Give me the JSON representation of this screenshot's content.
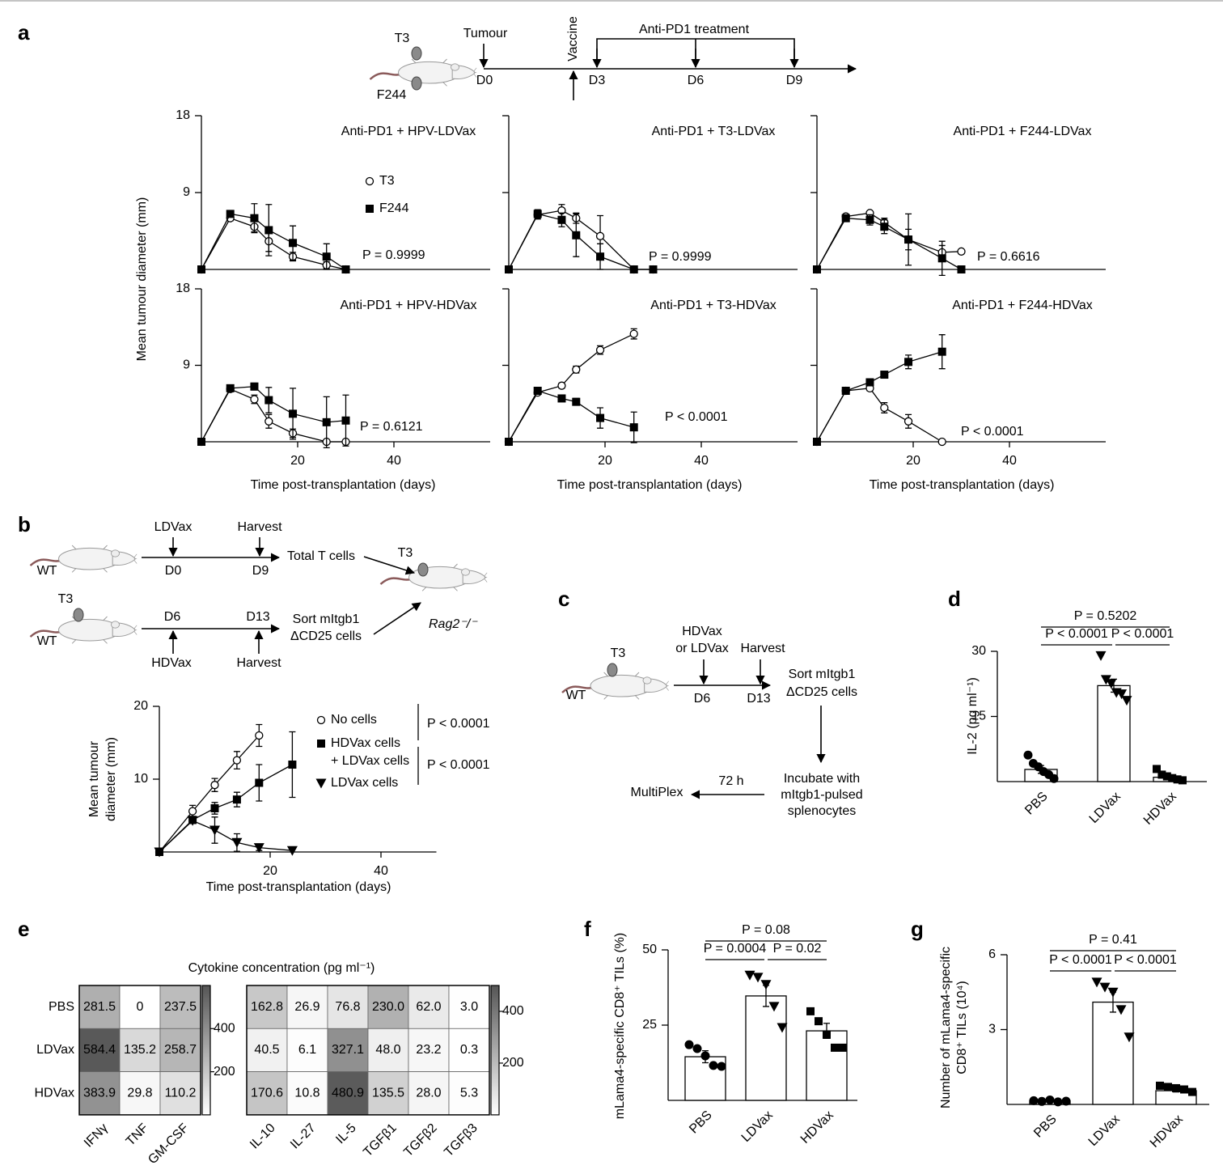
{
  "panel_labels": [
    "a",
    "b",
    "c",
    "d",
    "e",
    "f",
    "g"
  ],
  "diagram_a": {
    "labels": [
      "T3",
      "F244",
      "Tumour",
      "D0",
      "Vaccine",
      "Anti-PD1 treatment",
      "D3",
      "D6",
      "D9"
    ]
  },
  "diagram_b": {
    "labels": [
      "LDVax",
      "Harvest",
      "WT",
      "D0",
      "D9",
      "Total T cells",
      "T3",
      "Rag2⁻/⁻",
      "T3",
      "WT",
      "D6",
      "D13",
      "HDVax",
      "Harvest",
      "Sort mItgb1\nΔCD25 cells"
    ]
  },
  "diagram_c": {
    "labels": [
      "T3",
      "WT",
      "HDVax\nor LDVax",
      "Harvest",
      "D6",
      "D13",
      "Sort mItgb1\nΔCD25 cells",
      "Incubate with\nmItgb1-pulsed\nsplenocytes",
      "72 h",
      "MultiPlex"
    ]
  },
  "chart_data": [
    {
      "type": "line",
      "title": "Anti-PD1 + HPV-LDVax",
      "ylabel": "Mean tumour diameter (mm)",
      "p_value": "P = 0.9999",
      "legend": true,
      "xlim": [
        0,
        60
      ],
      "ylim": [
        0,
        18
      ],
      "yticks": [
        9,
        18
      ],
      "series": [
        {
          "name": "T3",
          "marker": "circle-open",
          "color": "#000000",
          "x": [
            0,
            6,
            11,
            14,
            19,
            26,
            30
          ],
          "values": [
            0,
            6,
            5,
            3.3,
            1.5,
            0.5,
            0
          ],
          "errors": [
            0,
            0.3,
            0.6,
            1.2,
            0.5,
            0.4,
            0
          ]
        },
        {
          "name": "F244",
          "marker": "square",
          "color": "#000000",
          "x": [
            0,
            6,
            11,
            14,
            19,
            26,
            30
          ],
          "values": [
            0,
            6.5,
            6,
            4.6,
            3.1,
            1.5,
            0
          ],
          "errors": [
            0,
            0.3,
            1.7,
            3,
            2,
            1.5,
            0
          ]
        }
      ]
    },
    {
      "type": "line",
      "title": "Anti-PD1 + T3-LDVax",
      "p_value": "P = 0.9999",
      "show_ytick_labels": false,
      "xlim": [
        0,
        60
      ],
      "ylim": [
        0,
        18
      ],
      "yticks": [
        9,
        18
      ],
      "series": [
        {
          "marker": "circle-open",
          "color": "#000000",
          "x": [
            0,
            6,
            11,
            14,
            19,
            26,
            30
          ],
          "values": [
            0,
            6.4,
            6.9,
            6,
            3.9,
            0,
            0
          ],
          "errors": [
            0,
            0.5,
            0.7,
            0.6,
            2.4,
            0,
            0
          ]
        },
        {
          "marker": "square",
          "color": "#000000",
          "x": [
            0,
            6,
            11,
            14,
            19,
            26,
            30
          ],
          "values": [
            0,
            6.5,
            5.8,
            4,
            1.5,
            0,
            0
          ],
          "errors": [
            0,
            0.5,
            0.8,
            2.5,
            1.5,
            0,
            0
          ]
        }
      ]
    },
    {
      "type": "line",
      "title": "Anti-PD1 + F244-LDVax",
      "p_value": "P = 0.6616",
      "show_ytick_labels": false,
      "xlim": [
        0,
        60
      ],
      "ylim": [
        0,
        18
      ],
      "yticks": [
        9,
        18
      ],
      "series": [
        {
          "marker": "circle-open",
          "color": "#000000",
          "x": [
            0,
            6,
            11,
            14,
            19,
            26,
            30
          ],
          "values": [
            0,
            6.2,
            6.6,
            5.5,
            3.5,
            2,
            2.1
          ],
          "errors": [
            0,
            0.2,
            0.2,
            0.5,
            1.2,
            0.8,
            0
          ]
        },
        {
          "marker": "square",
          "color": "#000000",
          "x": [
            0,
            6,
            11,
            14,
            19,
            26,
            30
          ],
          "values": [
            0,
            6,
            5.8,
            5,
            3.5,
            1.3,
            0
          ],
          "errors": [
            0,
            0.3,
            0.6,
            0.8,
            3,
            2,
            0
          ]
        }
      ]
    },
    {
      "type": "line",
      "title": "Anti-PD1 + HPV-HDVax",
      "p_value": "P = 0.6121",
      "xlabel": "Time post-transplantation (days)",
      "xlim": [
        0,
        60
      ],
      "ylim": [
        0,
        18
      ],
      "yticks": [
        9,
        18
      ],
      "xticks": [
        20,
        40
      ],
      "series": [
        {
          "marker": "circle-open",
          "color": "#000000",
          "x": [
            0,
            6,
            11,
            14,
            19,
            26,
            30
          ],
          "values": [
            0,
            6.2,
            5,
            2.4,
            1,
            0,
            0
          ],
          "errors": [
            0,
            0.2,
            0.5,
            0.8,
            0.5,
            0,
            0
          ]
        },
        {
          "marker": "square",
          "color": "#000000",
          "x": [
            0,
            6,
            11,
            14,
            19,
            26,
            30
          ],
          "values": [
            0,
            6.3,
            6.5,
            4.9,
            3.3,
            2.3,
            2.5
          ],
          "errors": [
            0,
            0.3,
            0.4,
            1.5,
            3,
            3,
            3
          ]
        }
      ]
    },
    {
      "type": "line",
      "title": "Anti-PD1 + T3-HDVax",
      "p_value": "P < 0.0001",
      "xlabel": "Time post-transplantation (days)",
      "show_ytick_labels": false,
      "xlim": [
        0,
        60
      ],
      "ylim": [
        0,
        18
      ],
      "yticks": [
        9,
        18
      ],
      "xticks": [
        20,
        40
      ],
      "series": [
        {
          "marker": "circle-open",
          "color": "#000000",
          "x": [
            0,
            6,
            11,
            14,
            19,
            26
          ],
          "values": [
            0,
            5.8,
            6.6,
            8.5,
            10.8,
            12.7
          ],
          "errors": [
            0,
            0.2,
            0.3,
            0.4,
            0.5,
            0.6
          ]
        },
        {
          "marker": "square",
          "color": "#000000",
          "x": [
            0,
            6,
            11,
            14,
            19,
            26
          ],
          "values": [
            0,
            6,
            5.1,
            4.7,
            2.8,
            1.7
          ],
          "errors": [
            0,
            0.2,
            0.2,
            0.4,
            1.2,
            1.8
          ]
        }
      ]
    },
    {
      "type": "line",
      "title": "Anti-PD1 + F244-HDVax",
      "p_value": "P < 0.0001",
      "xlabel": "Time post-transplantation (days)",
      "show_ytick_labels": false,
      "xlim": [
        0,
        60
      ],
      "ylim": [
        0,
        18
      ],
      "yticks": [
        9,
        18
      ],
      "xticks": [
        20,
        40
      ],
      "series": [
        {
          "marker": "circle-open",
          "color": "#000000",
          "x": [
            0,
            6,
            11,
            14,
            19,
            26
          ],
          "values": [
            0,
            6,
            6.3,
            4,
            2.4,
            0
          ],
          "errors": [
            0,
            0.2,
            0.3,
            0.6,
            0.8,
            0
          ]
        },
        {
          "marker": "square",
          "color": "#000000",
          "x": [
            0,
            6,
            11,
            14,
            19,
            26
          ],
          "values": [
            0,
            6,
            7,
            7.9,
            9.4,
            10.6
          ],
          "errors": [
            0,
            0.2,
            0.3,
            0.4,
            0.8,
            2
          ]
        }
      ]
    },
    {
      "type": "line",
      "ylabel": "Mean tumour\ndiameter (mm)",
      "xlabel": "Time post-transplantation (days)",
      "legend": true,
      "p_values": [
        "P < 0.0001",
        "P < 0.0001"
      ],
      "xlim": [
        0,
        50
      ],
      "ylim": [
        0,
        20
      ],
      "xticks": [
        20,
        40
      ],
      "yticks": [
        10,
        20
      ],
      "series": [
        {
          "name": "No cells",
          "marker": "circle-open",
          "color": "#000000",
          "x": [
            0,
            6,
            10,
            14,
            18
          ],
          "values": [
            0,
            5.6,
            9.2,
            12.6,
            16
          ],
          "errors": [
            0,
            0.8,
            0.9,
            1.2,
            1.5
          ]
        },
        {
          "name": "HDVax cells\n+ LDVax cells",
          "marker": "square",
          "color": "#000000",
          "x": [
            0,
            6,
            10,
            14,
            18,
            24
          ],
          "values": [
            0,
            4.4,
            6,
            7.2,
            9.5,
            12
          ],
          "errors": [
            0,
            0.5,
            0.8,
            1,
            2.5,
            4.5
          ]
        },
        {
          "name": "LDVax cells",
          "marker": "triangle",
          "color": "#000000",
          "x": [
            0,
            6,
            10,
            14,
            18,
            24
          ],
          "values": [
            0,
            4.3,
            3,
            1.3,
            0.6,
            0.2
          ],
          "errors": [
            0,
            0.3,
            1.8,
            1.2,
            0.4,
            0
          ]
        }
      ]
    },
    {
      "type": "bar",
      "ylabel": "IL-2 (pg ml⁻¹)",
      "categories": [
        "PBS",
        "LDVax",
        "HDVax"
      ],
      "values": [
        2.8,
        22.1,
        1
      ],
      "errors": [
        0.9,
        1.5,
        0.4
      ],
      "points": [
        [
          6.1,
          4.2,
          3.4,
          2.3,
          1.6,
          0.7
        ],
        [
          29,
          23.5,
          22.6,
          20.5,
          20.2,
          18.7
        ],
        [
          2.9,
          1.6,
          1.2,
          0.8,
          0.5,
          0.3
        ]
      ],
      "markers": [
        "circle",
        "triangle",
        "square"
      ],
      "ylim": [
        0,
        30
      ],
      "yticks": [
        15,
        30
      ],
      "p_values": [
        "P = 0.5202",
        "P < 0.0001",
        "P < 0.0001"
      ]
    },
    {
      "type": "heatmap",
      "title": "Cytokine concentration (pg ml⁻¹)",
      "rows": [
        "PBS",
        "LDVax",
        "HDVax"
      ],
      "columns": [
        "IFNγ",
        "TNF",
        "GM-CSF"
      ],
      "values": [
        [
          281.5,
          0,
          237.5
        ],
        [
          584.4,
          135.2,
          258.7
        ],
        [
          383.9,
          29.8,
          110.2
        ]
      ],
      "value_labels": [
        [
          "281.5",
          "0",
          "237.5"
        ],
        [
          "584.4",
          "135.2",
          "258.7"
        ],
        [
          "383.9",
          "29.8",
          "110.2"
        ]
      ],
      "clim": [
        0,
        600
      ],
      "cticks": [
        400,
        200
      ],
      "colormap": [
        "#ffffff",
        "#555555"
      ]
    },
    {
      "type": "heatmap",
      "columns": [
        "IL-10",
        "IL-27",
        "IL-5",
        "TGFβ1",
        "TGFβ2",
        "TGFβ3"
      ],
      "values": [
        [
          162.8,
          26.9,
          76.8,
          230,
          62,
          3
        ],
        [
          40.5,
          6.1,
          327.1,
          48,
          23.2,
          0.3
        ],
        [
          170.6,
          10.8,
          480.9,
          135.5,
          28,
          5.3
        ]
      ],
      "value_labels": [
        [
          "162.8",
          "26.9",
          "76.8",
          "230.0",
          "62.0",
          "3.0"
        ],
        [
          "40.5",
          "6.1",
          "327.1",
          "48.0",
          "23.2",
          "0.3"
        ],
        [
          "170.6",
          "10.8",
          "480.9",
          "135.5",
          "28.0",
          "5.3"
        ]
      ],
      "clim": [
        0,
        500
      ],
      "cticks": [
        400,
        200
      ],
      "colormap": [
        "#ffffff",
        "#555555"
      ]
    },
    {
      "type": "bar",
      "ylabel": "mLama4-specific CD8⁺ TILs (%)",
      "categories": [
        "PBS",
        "LDVax",
        "HDVax"
      ],
      "values": [
        14.5,
        34.7,
        23.1
      ],
      "errors": [
        2,
        3.5,
        2.5
      ],
      "points": [
        [
          18.5,
          17.2,
          14.8,
          11.6,
          11.3
        ],
        [
          41.6,
          40.9,
          38.5,
          31.2,
          24.2
        ],
        [
          29.6,
          26.3,
          21.8,
          17.5,
          17.5
        ]
      ],
      "markers": [
        "circle",
        "triangle",
        "square"
      ],
      "ylim": [
        0,
        50
      ],
      "yticks": [
        25,
        50
      ],
      "p_values": [
        "P = 0.08",
        "P = 0.0004",
        "P = 0.02"
      ]
    },
    {
      "type": "bar",
      "ylabel": "Number of mLama4-specific\nCD8⁺ TILs (10⁴)",
      "categories": [
        "PBS",
        "LDVax",
        "HDVax"
      ],
      "values": [
        0.15,
        4.1,
        0.55
      ],
      "errors": [
        0.02,
        0.4,
        0.05
      ],
      "points": [
        [
          0.15,
          0.12,
          0.18,
          0.1,
          0.13
        ],
        [
          4.9,
          4.7,
          4.5,
          3.8,
          2.7
        ],
        [
          0.75,
          0.7,
          0.65,
          0.6,
          0.5
        ]
      ],
      "markers": [
        "circle",
        "triangle",
        "square"
      ],
      "ylim": [
        0,
        6
      ],
      "yticks": [
        3,
        6
      ],
      "p_values": [
        "P = 0.41",
        "P < 0.0001",
        "P < 0.0001"
      ]
    }
  ]
}
